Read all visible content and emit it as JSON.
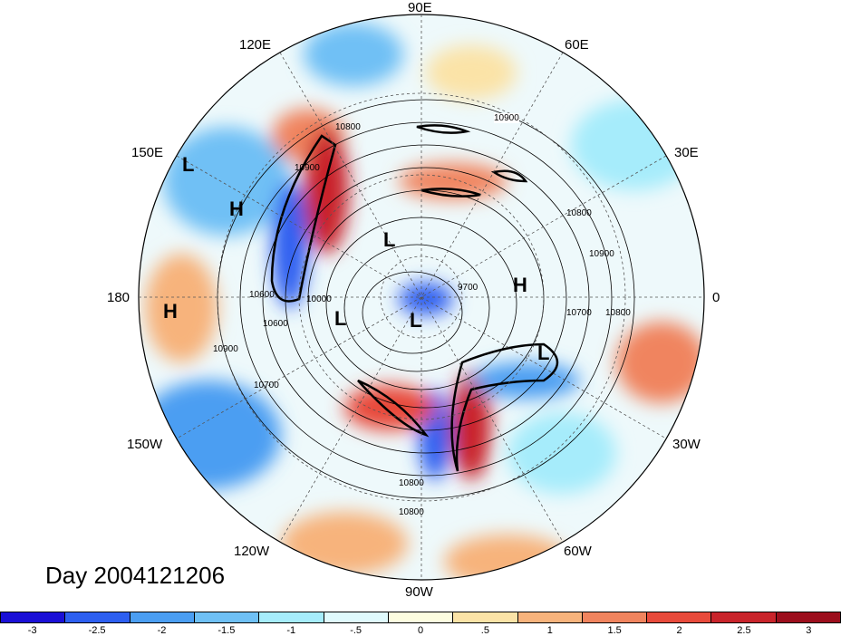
{
  "map": {
    "title": "Day 2004121206",
    "projection": "north-polar-stereographic",
    "longitude_labels": [
      {
        "id": "lon-90e",
        "text": "90E"
      },
      {
        "id": "lon-60e",
        "text": "60E"
      },
      {
        "id": "lon-30e",
        "text": "30E"
      },
      {
        "id": "lon-0",
        "text": "0"
      },
      {
        "id": "lon-30w",
        "text": "30W"
      },
      {
        "id": "lon-60w",
        "text": "60W"
      },
      {
        "id": "lon-90w",
        "text": "90W"
      },
      {
        "id": "lon-120w",
        "text": "120W"
      },
      {
        "id": "lon-150w",
        "text": "150W"
      },
      {
        "id": "lon-180",
        "text": "180"
      },
      {
        "id": "lon-150e",
        "text": "150E"
      },
      {
        "id": "lon-120e",
        "text": "120E"
      }
    ],
    "pressure_centers": [
      {
        "id": "center-l-1",
        "text": "L"
      },
      {
        "id": "center-h-1",
        "text": "H"
      },
      {
        "id": "center-h-2",
        "text": "H"
      },
      {
        "id": "center-l-2",
        "text": "L"
      },
      {
        "id": "center-l-3",
        "text": "L"
      },
      {
        "id": "center-l-4",
        "text": "L"
      },
      {
        "id": "center-h-3",
        "text": "H"
      },
      {
        "id": "center-l-5",
        "text": "L"
      }
    ],
    "contour_labels": [
      "10900",
      "10800",
      "10900",
      "10900",
      "10800",
      "10700",
      "10600",
      "10600",
      "10800",
      "9700",
      "10000",
      "10800",
      "10900",
      "10700",
      "10800"
    ]
  },
  "colorbar": {
    "colors": [
      "#1a0fd6",
      "#2d5ff0",
      "#4b9ef2",
      "#6fc0f5",
      "#a6ecfb",
      "#e0fafd",
      "#fdfde0",
      "#fbe3a7",
      "#f7b37c",
      "#f0845e",
      "#e84a3b",
      "#c9242b",
      "#9c0e1c"
    ],
    "tick_labels": [
      "-3",
      "-2.5",
      "-2",
      "-1.5",
      "-1",
      "-.5",
      "0",
      ".5",
      "1",
      "1.5",
      "2",
      "2.5",
      "3"
    ]
  }
}
